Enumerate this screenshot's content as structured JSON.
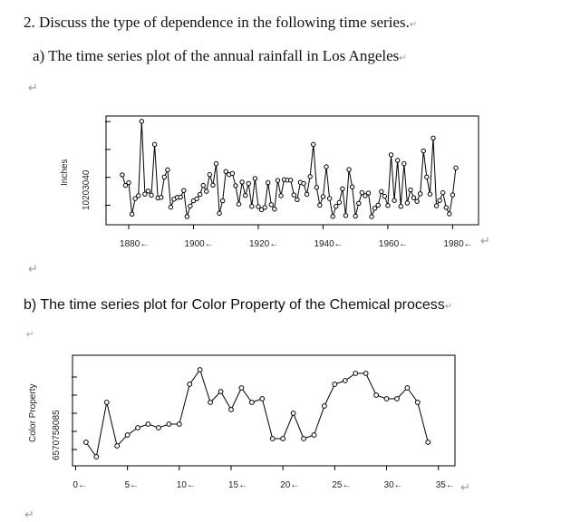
{
  "question": {
    "text": "2. Discuss the type of dependence in the following time series."
  },
  "part_a": {
    "heading": "a) The time series plot of the annual rainfall in Los Angeles"
  },
  "part_b": {
    "heading": "b) The time series plot for Color Property of the Chemical process"
  },
  "para_mark": "↵",
  "colors": {
    "text": "#111111",
    "line": "#000000",
    "mark": "#9a9a9a"
  },
  "chart_data": [
    {
      "type": "line",
      "title": "Annual rainfall in Los Angeles",
      "xlabel": "",
      "ylabel": "Inches",
      "ytick_text": "10203040",
      "x_ticks": [
        "1880",
        "1900",
        "1920",
        "1940",
        "1960",
        "1980"
      ],
      "x_tick_values": [
        1880,
        1900,
        1920,
        1940,
        1960,
        1980
      ],
      "xlim": [
        1873,
        1988
      ],
      "ylim": [
        3,
        42
      ],
      "x_start": 1878,
      "values": [
        20.9,
        17.1,
        18.1,
        6.8,
        12.4,
        13.4,
        40.1,
        14.0,
        15.1,
        13.6,
        31.8,
        12.6,
        12.8,
        20.1,
        22.7,
        9.3,
        12.2,
        12.8,
        12.9,
        15.3,
        5.9,
        9.7,
        11.6,
        12.3,
        13.9,
        17.1,
        15.0,
        21.0,
        17.2,
        24.9,
        7.1,
        11.6,
        22.1,
        21.0,
        21.4,
        17.0,
        10.4,
        18.3,
        13.5,
        17.8,
        9.6,
        19.6,
        9.5,
        8.4,
        9.2,
        18.1,
        10.2,
        8.6,
        18.9,
        13.4,
        19.2,
        19.0,
        19.0,
        13.7,
        12.0,
        18.2,
        17.8,
        13.9,
        20.3,
        31.8,
        16.4,
        10.0,
        13.1,
        23.8,
        12.4,
        6.0,
        9.6,
        11.0,
        15.9,
        6.3,
        22.8,
        16.6,
        6.1,
        10.7,
        14.5,
        13.4,
        14.4,
        5.9,
        8.9,
        10.0,
        14.9,
        13.2,
        9.9,
        28.1,
        11.7,
        26.1,
        9.6,
        24.9,
        10.8,
        15.5,
        12.7,
        11.4,
        14.1,
        29.5,
        20.1,
        14.0,
        34.1,
        9.8,
        11.7,
        14.5,
        9.2,
        6.9,
        13.7,
        23.4
      ]
    },
    {
      "type": "line",
      "title": "Color Property of the Chemical process",
      "xlabel": "",
      "ylabel": "Color Property",
      "ytick_text": "6570758085",
      "x_ticks": [
        "0",
        "5",
        "10",
        "15",
        "20",
        "25",
        "30",
        "35"
      ],
      "x_tick_values": [
        0,
        5,
        10,
        15,
        20,
        25,
        30,
        35
      ],
      "xlim": [
        -0.3,
        36.6
      ],
      "ylim": [
        60.5,
        91
      ],
      "x_start": 1,
      "values": [
        67,
        63,
        78,
        66,
        69,
        71,
        72,
        71,
        72,
        72,
        83,
        87,
        78,
        81,
        76,
        82,
        78,
        79,
        68,
        68,
        75,
        68,
        69,
        77,
        83,
        84,
        86,
        86,
        80,
        79,
        79,
        82,
        78,
        67
      ]
    }
  ]
}
